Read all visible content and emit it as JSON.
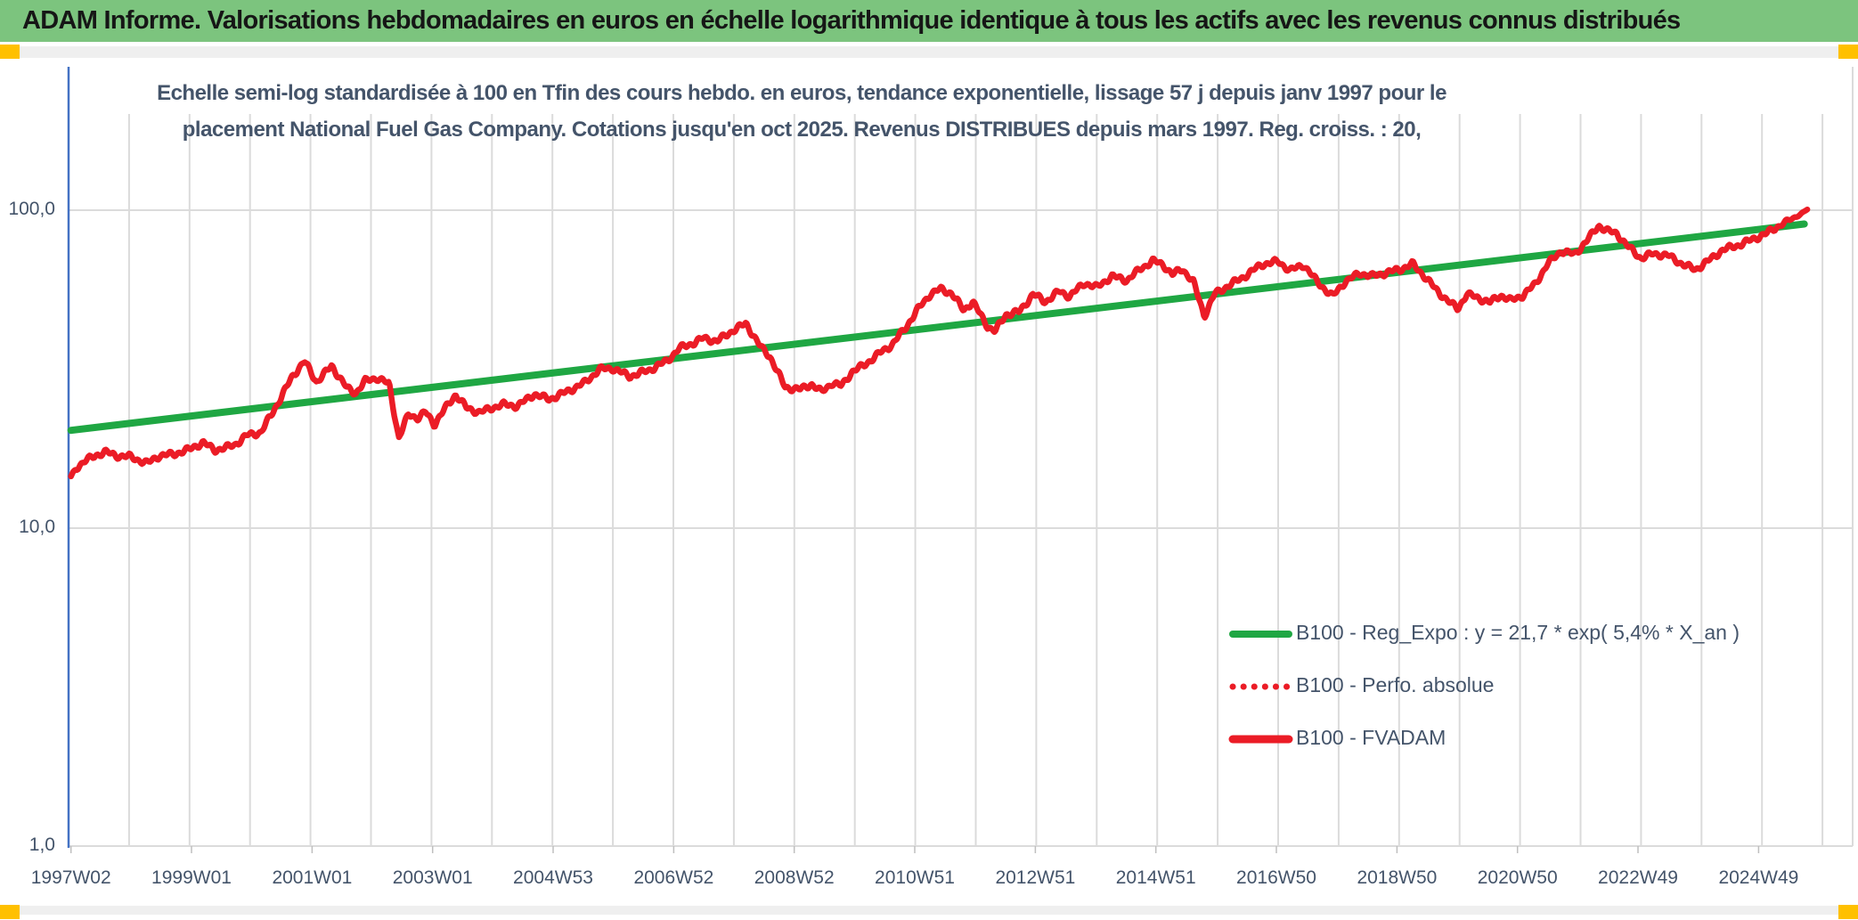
{
  "header": {
    "title": "ADAM Informe. Valorisations hebdomadaires en euros en échelle logarithmique identique à tous les actifs avec les revenus connus distribués"
  },
  "chart_title": {
    "line1": "Echelle semi-log standardisée à 100 en Tfin des cours hebdo. en euros, tendance exponentielle, lissage 57 j depuis janv 1997 pour le",
    "line2": "placement National Fuel Gas Company. Cotations jusqu'en oct 2025. Revenus DISTRIBUES depuis mars 1997. Reg. croiss. : 20,"
  },
  "accents": {
    "header_bg": "#7CC47E",
    "header_text": "#161616",
    "corner_square": "#FFC000",
    "strip_bg": "#EFEFEF",
    "axis_blue": "#4472C4",
    "gridline": "#DBDBDB",
    "tick": "#BFBFBF",
    "label_text": "#44546A",
    "green_line": "#1FA743",
    "red_line": "#EB1C26"
  },
  "chart_data": {
    "type": "line",
    "x_axis": {
      "labels": [
        "1997W02",
        "1999W01",
        "2001W01",
        "2003W01",
        "2004W53",
        "2006W52",
        "2008W52",
        "2010W51",
        "2012W51",
        "2014W51",
        "2016W50",
        "2018W50",
        "2020W50",
        "2022W49",
        "2024W49"
      ],
      "start_year": 1997.04,
      "end_year": 2025.75,
      "label_interval_weeks": 104,
      "gridlines": "yearly"
    },
    "y_axis": {
      "scale": "log10",
      "ticks": [
        {
          "value": 100,
          "label": "100,0"
        },
        {
          "value": 10,
          "label": "10,0"
        },
        {
          "value": 1,
          "label": "1,0"
        }
      ],
      "ylim": [
        1,
        280
      ]
    },
    "legend": {
      "position": "center-right",
      "items": [
        {
          "label": "B100 - Reg_Expo : y = 21,7 * exp( 5,4% *  X_an )",
          "style": "solid",
          "color": "#1FA743",
          "thickness": 8
        },
        {
          "label": "B100 - Perfo. absolue",
          "style": "dotted",
          "color": "#EB1C26",
          "thickness": 7
        },
        {
          "label": "B100 - FVADAM",
          "style": "solid",
          "color": "#EB1C26",
          "thickness": 9
        }
      ]
    },
    "series": [
      {
        "name": "B100 - Reg_Expo : y = 21,7 * exp( 5,4% *  X_an )",
        "style": "solid",
        "color": "#1FA743",
        "points": [
          [
            1997.04,
            20.3
          ],
          [
            2025.7,
            90.5
          ]
        ]
      },
      {
        "name": "B100 - Perfo. absolue",
        "style": "dotted",
        "color": "#EB1C26",
        "note": "visually coincident with B100 - FVADAM (hidden beneath it)"
      },
      {
        "name": "B100 - FVADAM",
        "style": "solid",
        "color": "#EB1C26",
        "points": [
          [
            1997.04,
            14.5
          ],
          [
            1997.12,
            15.4
          ],
          [
            1997.25,
            16.2
          ],
          [
            1997.45,
            16.9
          ],
          [
            1997.6,
            17.4
          ],
          [
            1997.78,
            16.9
          ],
          [
            1998.0,
            16.8
          ],
          [
            1998.15,
            16.4
          ],
          [
            1998.3,
            16.0
          ],
          [
            1998.5,
            16.9
          ],
          [
            1998.75,
            17.1
          ],
          [
            1999.0,
            17.7
          ],
          [
            1999.22,
            18.6
          ],
          [
            1999.42,
            17.6
          ],
          [
            1999.6,
            17.9
          ],
          [
            1999.75,
            18.3
          ],
          [
            1999.95,
            19.6
          ],
          [
            2000.18,
            20.0
          ],
          [
            2000.45,
            24.5
          ],
          [
            2000.7,
            30.0
          ],
          [
            2000.9,
            33.5
          ],
          [
            2001.1,
            28.8
          ],
          [
            2001.35,
            32.4
          ],
          [
            2001.6,
            27.6
          ],
          [
            2001.75,
            26.6
          ],
          [
            2001.9,
            29.0
          ],
          [
            2002.1,
            29.7
          ],
          [
            2002.3,
            28.4
          ],
          [
            2002.46,
            19.2
          ],
          [
            2002.62,
            22.8
          ],
          [
            2002.78,
            22.2
          ],
          [
            2002.9,
            23.2
          ],
          [
            2003.05,
            21.2
          ],
          [
            2003.22,
            23.7
          ],
          [
            2003.4,
            26.3
          ],
          [
            2003.58,
            23.9
          ],
          [
            2003.8,
            23.1
          ],
          [
            2004.0,
            23.9
          ],
          [
            2004.2,
            24.5
          ],
          [
            2004.42,
            24.2
          ],
          [
            2004.7,
            26.4
          ],
          [
            2004.95,
            25.4
          ],
          [
            2005.3,
            27.2
          ],
          [
            2005.55,
            28.8
          ],
          [
            2005.78,
            31.6
          ],
          [
            2006.0,
            31.8
          ],
          [
            2006.28,
            30.0
          ],
          [
            2006.6,
            31.4
          ],
          [
            2006.9,
            33.6
          ],
          [
            2007.1,
            36.8
          ],
          [
            2007.3,
            38.0
          ],
          [
            2007.5,
            39.6
          ],
          [
            2007.72,
            38.7
          ],
          [
            2008.0,
            42.0
          ],
          [
            2008.2,
            44.0
          ],
          [
            2008.45,
            37.0
          ],
          [
            2008.6,
            34.6
          ],
          [
            2008.85,
            27.7
          ],
          [
            2009.1,
            27.3
          ],
          [
            2009.28,
            28.4
          ],
          [
            2009.45,
            26.8
          ],
          [
            2009.62,
            28.6
          ],
          [
            2009.78,
            28.0
          ],
          [
            2009.95,
            31.0
          ],
          [
            2010.15,
            32.5
          ],
          [
            2010.4,
            35.4
          ],
          [
            2010.62,
            37.8
          ],
          [
            2010.85,
            43.0
          ],
          [
            2011.05,
            49.0
          ],
          [
            2011.25,
            54.5
          ],
          [
            2011.42,
            56.5
          ],
          [
            2011.6,
            54.8
          ],
          [
            2011.8,
            48.5
          ],
          [
            2011.95,
            51.5
          ],
          [
            2012.2,
            43.0
          ],
          [
            2012.32,
            41.6
          ],
          [
            2012.5,
            47.0
          ],
          [
            2012.72,
            47.9
          ],
          [
            2012.95,
            54.5
          ],
          [
            2013.15,
            51.5
          ],
          [
            2013.38,
            55.6
          ],
          [
            2013.55,
            53.6
          ],
          [
            2013.8,
            59.0
          ],
          [
            2014.0,
            57.2
          ],
          [
            2014.25,
            62.0
          ],
          [
            2014.5,
            60.2
          ],
          [
            2014.72,
            65.3
          ],
          [
            2014.93,
            69.3
          ],
          [
            2015.1,
            67.4
          ],
          [
            2015.25,
            62.8
          ],
          [
            2015.42,
            65.3
          ],
          [
            2015.6,
            59.4
          ],
          [
            2015.78,
            46.5
          ],
          [
            2015.95,
            54.5
          ],
          [
            2016.2,
            58.2
          ],
          [
            2016.45,
            62.0
          ],
          [
            2016.72,
            67.4
          ],
          [
            2017.0,
            69.0
          ],
          [
            2017.2,
            64.6
          ],
          [
            2017.42,
            67.4
          ],
          [
            2017.65,
            59.4
          ],
          [
            2017.9,
            53.6
          ],
          [
            2018.1,
            59.4
          ],
          [
            2018.35,
            63.4
          ],
          [
            2018.55,
            62.0
          ],
          [
            2018.78,
            63.5
          ],
          [
            2019.05,
            65.5
          ],
          [
            2019.22,
            67.8
          ],
          [
            2019.42,
            62.0
          ],
          [
            2019.62,
            56.0
          ],
          [
            2019.85,
            51.0
          ],
          [
            2019.97,
            49.0
          ],
          [
            2020.12,
            54.5
          ],
          [
            2020.3,
            53.0
          ],
          [
            2020.5,
            51.3
          ],
          [
            2020.68,
            54.0
          ],
          [
            2020.85,
            52.0
          ],
          [
            2021.05,
            54.0
          ],
          [
            2021.25,
            58.5
          ],
          [
            2021.45,
            67.5
          ],
          [
            2021.68,
            74.5
          ],
          [
            2021.9,
            72.5
          ],
          [
            2022.1,
            80.0
          ],
          [
            2022.3,
            89.4
          ],
          [
            2022.45,
            86.0
          ],
          [
            2022.6,
            84.5
          ],
          [
            2022.78,
            77.0
          ],
          [
            2023.0,
            70.6
          ],
          [
            2023.2,
            73.0
          ],
          [
            2023.45,
            72.0
          ],
          [
            2023.7,
            67.4
          ],
          [
            2023.9,
            65.0
          ],
          [
            2024.1,
            69.0
          ],
          [
            2024.35,
            75.0
          ],
          [
            2024.6,
            77.5
          ],
          [
            2024.85,
            81.0
          ],
          [
            2025.1,
            85.0
          ],
          [
            2025.35,
            91.0
          ],
          [
            2025.55,
            95.0
          ],
          [
            2025.75,
            100.5
          ]
        ]
      }
    ]
  }
}
